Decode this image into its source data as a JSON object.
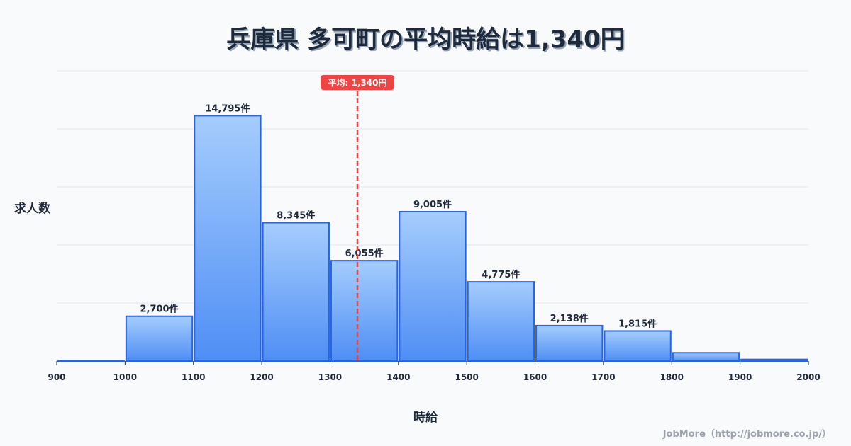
{
  "title": "兵庫県 多可町の平均時給は1,340円",
  "y_axis_label": "求人数",
  "x_axis_label": "時給",
  "credit": "JobMore（http://jobmore.co.jp/）",
  "average": {
    "value": 1340,
    "label": "平均: 1,340円",
    "color": "#ef4444"
  },
  "colors": {
    "bar_top": "#a5cdfd",
    "bar_bottom": "#4f8ef5",
    "bar_stroke": "#2563eb",
    "grid": "#e2e8f0",
    "text": "#1e293b",
    "background": "#f8fafc"
  },
  "chart_data": {
    "type": "bar",
    "subtype": "histogram",
    "title": "兵庫県 多可町の平均時給は1,340円",
    "xlabel": "時給",
    "ylabel": "求人数",
    "bin_edges": [
      900,
      1000,
      1100,
      1200,
      1300,
      1400,
      1500,
      1600,
      1700,
      1800,
      1900,
      2000
    ],
    "categories": [
      "900-1000",
      "1000-1100",
      "1100-1200",
      "1200-1300",
      "1300-1400",
      "1400-1500",
      "1500-1600",
      "1600-1700",
      "1700-1800",
      "1800-1900",
      "1900-2000"
    ],
    "values": [
      30,
      2700,
      14795,
      8345,
      6055,
      9005,
      4775,
      2138,
      1815,
      500,
      100
    ],
    "value_labels": [
      "",
      "2,700件",
      "14,795件",
      "8,345件",
      "6,055件",
      "9,005件",
      "4,775件",
      "2,138件",
      "1,815件",
      "",
      ""
    ],
    "x_ticks": [
      "900",
      "1000",
      "1100",
      "1200",
      "1300",
      "1400",
      "1500",
      "1600",
      "1700",
      "1800",
      "1900",
      "2000"
    ],
    "xlim": [
      900,
      2000
    ],
    "ylim": [
      0,
      17500
    ],
    "grid": true,
    "y_tick_labels_shown": false,
    "annotations": [
      {
        "type": "vline",
        "x": 1340,
        "style": "dashed",
        "label": "平均: 1,340円"
      }
    ],
    "legend": null
  }
}
